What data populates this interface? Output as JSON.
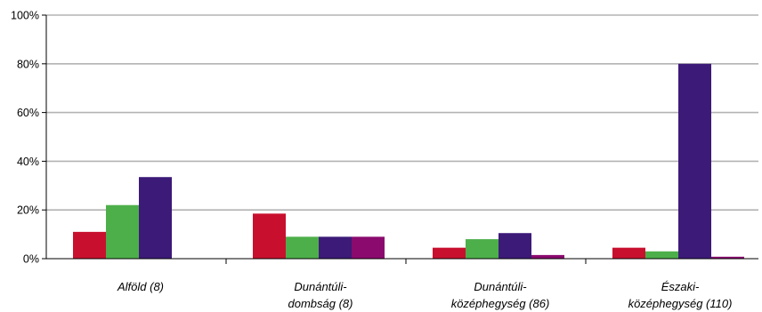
{
  "chart_data": {
    "type": "bar",
    "title": "",
    "xlabel": "",
    "ylabel": "",
    "ylim": [
      0,
      100
    ],
    "y_ticks": [
      "0%",
      "20%",
      "40%",
      "60%",
      "80%",
      "100%"
    ],
    "y_tick_values": [
      0,
      20,
      40,
      60,
      80,
      100
    ],
    "grid": true,
    "legend": "none",
    "categories": [
      [
        "Alföld (8)"
      ],
      [
        "Dunántúli-",
        "dombság (8)"
      ],
      [
        "Dunántúli-",
        "középhegység (86)"
      ],
      [
        "Északi-",
        "középhegység (110)"
      ]
    ],
    "series": [
      {
        "color": "#c8102e",
        "values": [
          11,
          18.5,
          4.5,
          4.5
        ]
      },
      {
        "color": "#4daf4a",
        "values": [
          22,
          9,
          8,
          3
        ]
      },
      {
        "color": "#3c1a78",
        "values": [
          33.5,
          9,
          10.5,
          80
        ]
      },
      {
        "color": "#8b0a6e",
        "values": [
          0,
          9,
          1.5,
          0.8
        ]
      }
    ],
    "grid_color": "#b3b3b3",
    "axis_color": "#000000"
  }
}
